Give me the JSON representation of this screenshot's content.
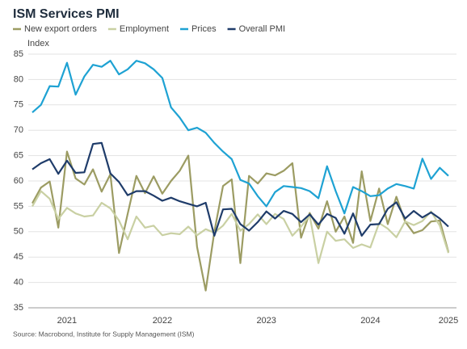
{
  "chart_data": {
    "type": "line",
    "title": "ISM Services PMI",
    "y_label": "Index",
    "source": "Source: Macrobond, Institute for Supply Management (ISM)",
    "categories": [
      null,
      null,
      null,
      null,
      "2021",
      null,
      null,
      null,
      null,
      null,
      null,
      null,
      null,
      null,
      null,
      "2022",
      null,
      null,
      null,
      null,
      null,
      null,
      null,
      null,
      null,
      null,
      null,
      "2023",
      null,
      null,
      null,
      null,
      null,
      null,
      null,
      null,
      null,
      null,
      null,
      "2024",
      null,
      null,
      null,
      null,
      null,
      null,
      null,
      null,
      "2025"
    ],
    "ylim": [
      35,
      85
    ],
    "yticks": [
      35,
      40,
      45,
      50,
      55,
      60,
      65,
      70,
      75,
      80,
      85
    ],
    "grid": true,
    "series": [
      {
        "name": "New export orders",
        "color": "#9c9c63",
        "values": [
          55.6,
          58.7,
          59.9,
          50.8,
          65.8,
          60.5,
          59.3,
          62.3,
          57.9,
          61.3,
          45.8,
          53.5,
          61.0,
          57.6,
          60.9,
          57.5,
          60.0,
          62.0,
          65.0,
          47.0,
          38.4,
          50.0,
          59.0,
          60.3,
          43.8,
          61.0,
          59.5,
          61.5,
          61.1,
          62.0,
          63.5,
          48.8,
          53.7,
          50.6,
          56.0,
          50.0,
          53.0,
          47.8,
          61.9,
          52.1,
          58.5,
          51.5,
          56.9,
          52.0,
          49.7,
          50.3,
          52.0,
          52.2,
          46.0
        ]
      },
      {
        "name": "Employment",
        "color": "#c9d0a3",
        "values": [
          55.0,
          58.0,
          56.5,
          52.5,
          54.7,
          53.6,
          53.0,
          53.2,
          55.7,
          54.6,
          52.2,
          48.5,
          53.0,
          50.8,
          51.2,
          49.3,
          49.7,
          49.5,
          51.0,
          49.3,
          50.5,
          49.8,
          51.2,
          53.5,
          50.2,
          51.5,
          53.4,
          51.5,
          53.5,
          52.5,
          49.2,
          51.0,
          53.2,
          43.8,
          50.0,
          48.2,
          48.5,
          46.8,
          47.5,
          46.9,
          51.7,
          50.6,
          48.9,
          52.0,
          51.3,
          52.1,
          54.0,
          51.2,
          45.8
        ]
      },
      {
        "name": "Prices",
        "color": "#1ea2d3",
        "values": [
          73.5,
          75.0,
          78.7,
          78.6,
          83.3,
          77.0,
          80.6,
          82.9,
          82.5,
          83.7,
          81.0,
          82.0,
          83.7,
          83.2,
          82.0,
          80.3,
          74.5,
          72.5,
          70.0,
          70.5,
          69.5,
          67.5,
          65.8,
          64.3,
          60.2,
          59.5,
          57.0,
          55.0,
          57.8,
          59.0,
          58.8,
          58.6,
          58.0,
          56.6,
          62.9,
          58.0,
          53.6,
          58.8,
          58.0,
          57.0,
          57.2,
          58.5,
          59.4,
          59.0,
          58.5,
          64.4,
          60.4,
          62.6,
          61.0
        ]
      },
      {
        "name": "Overall PMI",
        "color": "#1f3c6a",
        "values": [
          62.3,
          63.5,
          64.3,
          61.4,
          64.0,
          61.6,
          61.7,
          67.3,
          67.5,
          61.5,
          59.8,
          57.2,
          58.0,
          58.0,
          57.1,
          56.1,
          56.7,
          56.0,
          55.5,
          55.0,
          55.7,
          49.2,
          54.4,
          54.5,
          51.5,
          50.2,
          51.9,
          54.0,
          52.6,
          54.1,
          53.5,
          51.9,
          53.4,
          51.4,
          53.5,
          52.7,
          49.6,
          53.6,
          49.2,
          51.4,
          51.5,
          54.5,
          55.8,
          52.6,
          54.1,
          52.8,
          53.8,
          52.6,
          51.0
        ]
      }
    ]
  }
}
